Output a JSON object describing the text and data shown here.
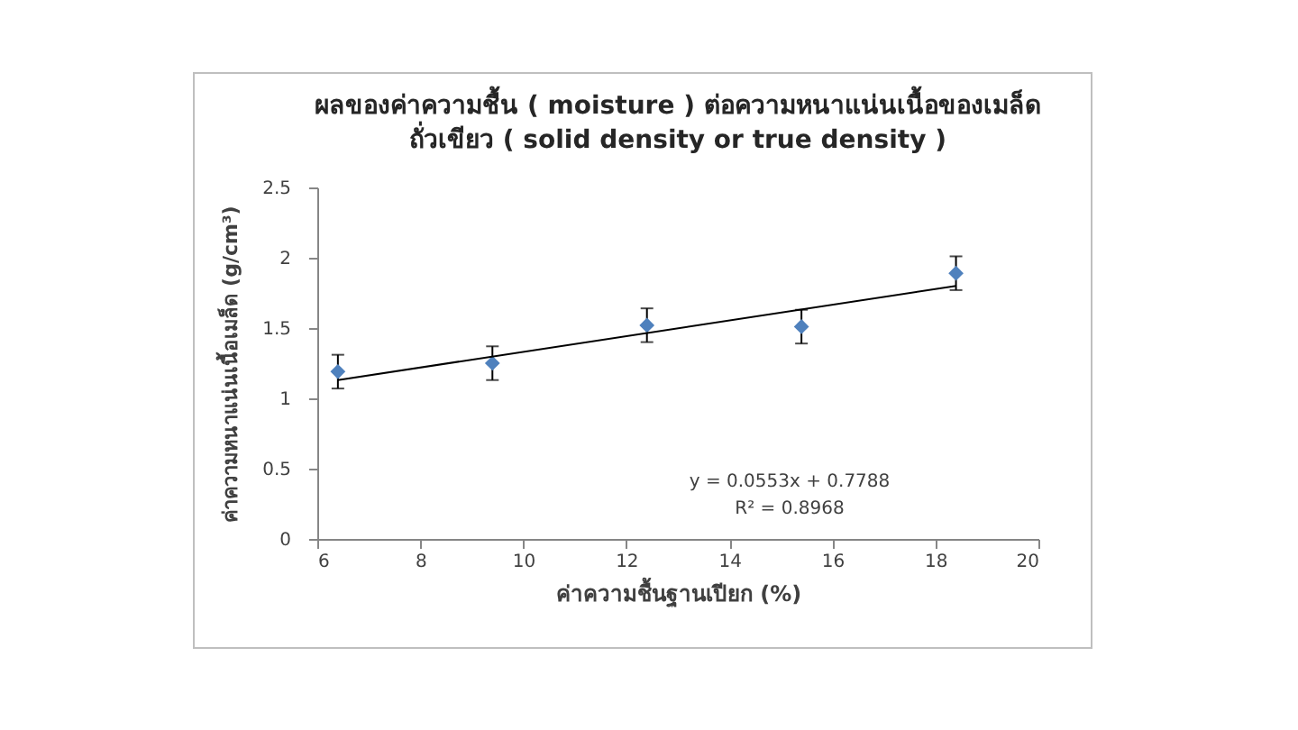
{
  "chart_data": {
    "type": "scatter",
    "title": "ผลของค่าความชื้น ( moisture ) ต่อความหนาแน่นเนื้อของเมล็ด\nถั่วเขียว ( solid density  or  true density )",
    "xlabel": "ค่าความชื้นฐานเปียก (%)",
    "ylabel": "ค่าความหนาแน่นเนื้อเมล็ด (g/cm³)",
    "annotations": [
      "y = 0.0553x + 0.7788",
      "R² = 0.8968"
    ],
    "xlim": [
      6,
      20
    ],
    "xticks": [
      6,
      8,
      10,
      12,
      14,
      16,
      18,
      20
    ],
    "ylim": [
      0,
      2.5
    ],
    "yticks": [
      0,
      0.5,
      1,
      1.5,
      2,
      2.5
    ],
    "series": [
      {
        "color": "#4f81bd",
        "marker": "diamond",
        "x": [
          6.4,
          9.4,
          12.4,
          15.4,
          18.4
        ],
        "values": [
          1.19,
          1.25,
          1.52,
          1.51,
          1.89
        ],
        "errors": [
          0.12,
          0.12,
          0.12,
          0.12,
          0.12
        ]
      },
      {
        "type": "line",
        "color": "#000000",
        "x": [
          6.4,
          18.4
        ],
        "values": [
          1.13,
          1.8
        ]
      }
    ]
  }
}
